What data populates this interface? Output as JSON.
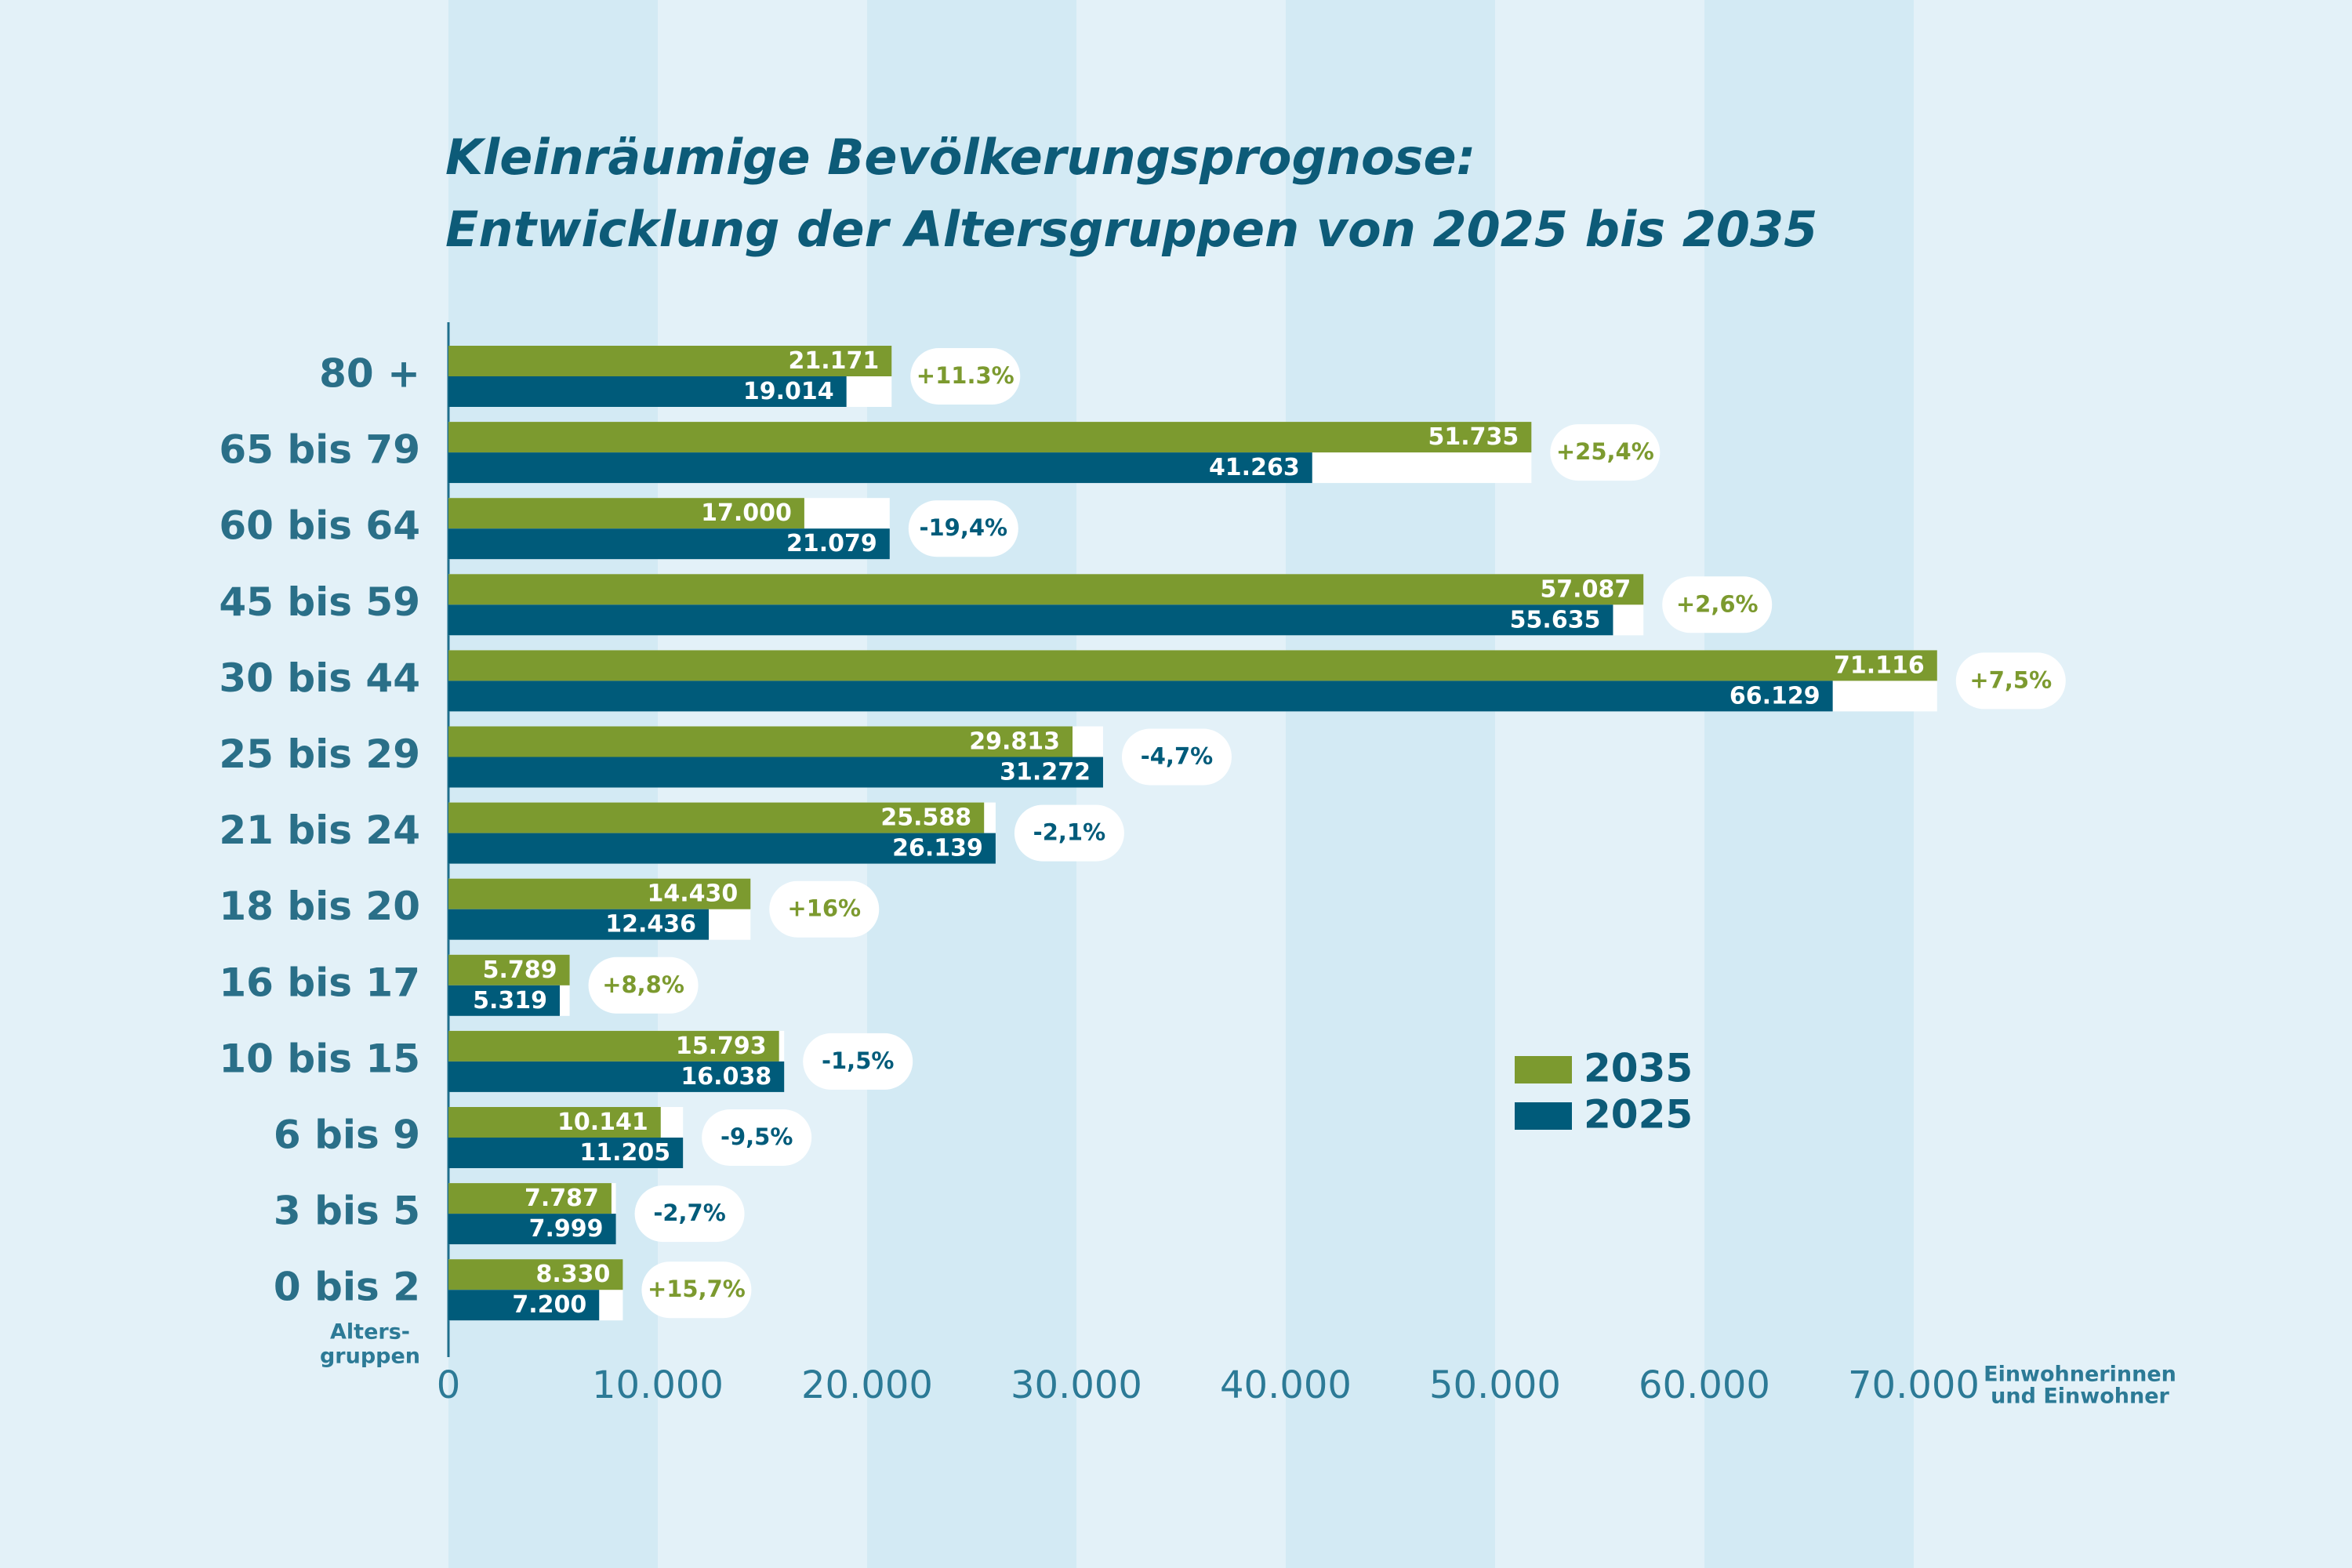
{
  "chart_data": {
    "type": "hbar",
    "title": [
      "Kleinräumige Bevölkerungsprognose:",
      "Entwicklung der Altersgruppen von 2025 bis 2035"
    ],
    "ylabel": [
      "Alters-",
      "gruppen"
    ],
    "xlabel": [
      "Einwohnerinnen",
      "und Einwohner"
    ],
    "categories": [
      "80 +",
      "65 bis 79",
      "60 bis 64",
      "45 bis 59",
      "30 bis 44",
      "25 bis 29",
      "21 bis 24",
      "18 bis 20",
      "16 bis 17",
      "10 bis 15",
      "6 bis 9",
      "3 bis 5",
      "0 bis 2"
    ],
    "series": [
      {
        "name": "2035",
        "color": "#7c9a2f",
        "values": [
          21171,
          51735,
          17000,
          57087,
          71116,
          29813,
          25588,
          14430,
          5789,
          15793,
          10141,
          7787,
          8330
        ],
        "value_labels": [
          "21.171",
          "51.735",
          "17.000",
          "57.087",
          "71.116",
          "29.813",
          "25.588",
          "14.430",
          "5.789",
          "15.793",
          "10.141",
          "7.787",
          "8.330"
        ]
      },
      {
        "name": "2025",
        "color": "#005b7a",
        "values": [
          19014,
          41263,
          21079,
          55635,
          66129,
          31272,
          26139,
          12436,
          5319,
          16038,
          11205,
          7999,
          7200
        ],
        "value_labels": [
          "19.014",
          "41.263",
          "21.079",
          "55.635",
          "66.129",
          "31.272",
          "26.139",
          "12.436",
          "5.319",
          "16.038",
          "11.205",
          "7.999",
          "7.200"
        ]
      }
    ],
    "annotations": [
      "+11.3%",
      "+25,4%",
      "-19,4%",
      "+2,6%",
      "+7,5%",
      "-4,7%",
      "-2,1%",
      "+16%",
      "+8,8%",
      "-1,5%",
      "-9,5%",
      "-2,7%",
      "+15,7%"
    ],
    "xlim": [
      0,
      70000
    ],
    "xticks": [
      0,
      {
        "value": 10000,
        "label": "10.000"
      },
      {
        "value": 20000,
        "label": "20.000"
      },
      {
        "value": 30000,
        "label": "30.000"
      },
      {
        "value": 40000,
        "label": "40.000"
      },
      {
        "value": 50000,
        "label": "50.000"
      },
      {
        "value": 60000,
        "label": "60.000"
      },
      {
        "value": 70000,
        "label": "70.000"
      }
    ],
    "grid": "stripes",
    "legend": "center right"
  }
}
